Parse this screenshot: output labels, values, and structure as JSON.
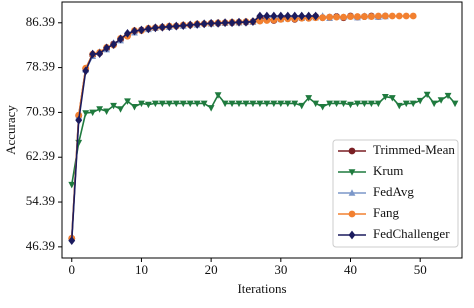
{
  "chart_data": {
    "type": "line",
    "xlabel": "Iterations",
    "ylabel": "Accuracy",
    "xlim": [
      -1.4,
      56.0
    ],
    "xticks": [
      0,
      10,
      20,
      30,
      40,
      50
    ],
    "ylim": [
      44.4,
      90.1
    ],
    "yticks": [
      46.39,
      54.39,
      62.39,
      70.39,
      78.39,
      86.39
    ],
    "legend": "lower right",
    "x": [
      0,
      1,
      2,
      3,
      4,
      5,
      6,
      7,
      8,
      9,
      10,
      11,
      12,
      13,
      14,
      15,
      16,
      17,
      18,
      19,
      20,
      21,
      22,
      23,
      24,
      25,
      26,
      27,
      28,
      29,
      30,
      31,
      32,
      33,
      34,
      35,
      36,
      37,
      38,
      39,
      40,
      41,
      42,
      43,
      44,
      45,
      46,
      47,
      48,
      49,
      50,
      51,
      52,
      53,
      54,
      55
    ],
    "series": [
      {
        "name": "Trimmed-Mean",
        "color": "#7a1f24",
        "marker": "circle",
        "values": [
          47.9,
          69.8,
          78.2,
          80.6,
          81.0,
          81.8,
          82.6,
          83.4,
          84.2,
          84.8,
          85.1,
          85.3,
          85.5,
          85.6,
          85.7,
          85.8,
          85.9,
          86.0,
          86.1,
          86.2,
          86.3,
          86.3,
          86.4,
          86.4,
          86.5,
          86.5,
          86.6,
          87.4,
          87.0,
          86.8,
          87.2,
          87.4,
          87.0,
          87.3,
          87.2,
          87.5,
          87.3,
          87.4,
          87.5,
          87.3,
          87.6,
          87.4,
          87.5,
          87.6,
          87.5,
          87.6,
          null,
          null,
          null,
          null,
          null,
          null,
          null,
          null,
          null,
          null
        ]
      },
      {
        "name": "Krum",
        "color": "#1f7a3e",
        "marker": "triangle-down",
        "values": [
          57.5,
          65.0,
          70.3,
          70.4,
          71.0,
          70.6,
          71.6,
          71.0,
          72.4,
          71.4,
          72.0,
          71.8,
          72.0,
          72.0,
          72.0,
          72.0,
          72.0,
          72.0,
          72.0,
          72.0,
          71.2,
          73.5,
          72.0,
          72.0,
          72.0,
          72.0,
          72.0,
          72.0,
          72.0,
          72.0,
          72.0,
          72.0,
          72.0,
          71.6,
          73.0,
          72.0,
          71.4,
          72.0,
          72.0,
          72.0,
          71.8,
          72.0,
          72.0,
          72.0,
          72.0,
          73.2,
          73.0,
          71.6,
          72.0,
          72.0,
          72.5,
          73.6,
          72.0,
          72.6,
          73.4,
          72.0
        ]
      },
      {
        "name": "FedAvg",
        "color": "#7b97c9",
        "marker": "triangle-up",
        "values": [
          47.9,
          69.6,
          78.0,
          80.4,
          81.2,
          81.6,
          82.8,
          83.2,
          84.4,
          84.6,
          85.2,
          85.2,
          85.4,
          85.7,
          85.6,
          85.9,
          85.8,
          86.1,
          86.0,
          86.3,
          86.2,
          86.4,
          86.3,
          86.5,
          86.4,
          86.6,
          86.5,
          86.8,
          87.2,
          87.6,
          87.0,
          87.3,
          87.5,
          87.2,
          87.4,
          87.3,
          87.6,
          87.2,
          87.5,
          87.4,
          87.5,
          87.3,
          87.6,
          87.5,
          87.4,
          87.5,
          null,
          null,
          null,
          null,
          null,
          null,
          null,
          null,
          null,
          null
        ]
      },
      {
        "name": "Fang",
        "color": "#f28030",
        "marker": "circle",
        "values": [
          47.9,
          69.9,
          78.3,
          80.8,
          81.1,
          82.0,
          82.4,
          83.6,
          84.0,
          85.0,
          85.0,
          85.4,
          85.5,
          85.6,
          85.8,
          85.8,
          86.0,
          86.0,
          86.2,
          86.2,
          86.3,
          86.4,
          86.4,
          86.5,
          86.5,
          86.6,
          86.6,
          86.7,
          86.8,
          86.9,
          87.0,
          87.1,
          87.1,
          87.2,
          87.2,
          87.3,
          87.3,
          87.4,
          87.4,
          87.4,
          87.5,
          87.5,
          87.5,
          87.5,
          87.6,
          87.6,
          87.6,
          87.6,
          87.6,
          87.6,
          null,
          null,
          null,
          null,
          null,
          null
        ]
      },
      {
        "name": "FedChallenger",
        "color": "#1b1b5e",
        "marker": "diamond",
        "values": [
          47.5,
          69.0,
          77.8,
          80.8,
          80.9,
          81.9,
          82.5,
          83.5,
          84.5,
          84.9,
          85.1,
          85.3,
          85.5,
          85.6,
          85.7,
          85.8,
          85.9,
          86.0,
          86.1,
          86.2,
          86.3,
          86.3,
          86.4,
          86.4,
          86.5,
          86.5,
          86.6,
          87.6,
          87.6,
          87.6,
          87.6,
          87.6,
          87.6,
          87.6,
          87.6,
          87.6,
          null,
          null,
          null,
          null,
          null,
          null,
          null,
          null,
          null,
          null,
          null,
          null,
          null,
          null,
          null,
          null,
          null,
          null,
          null,
          null
        ]
      }
    ]
  }
}
